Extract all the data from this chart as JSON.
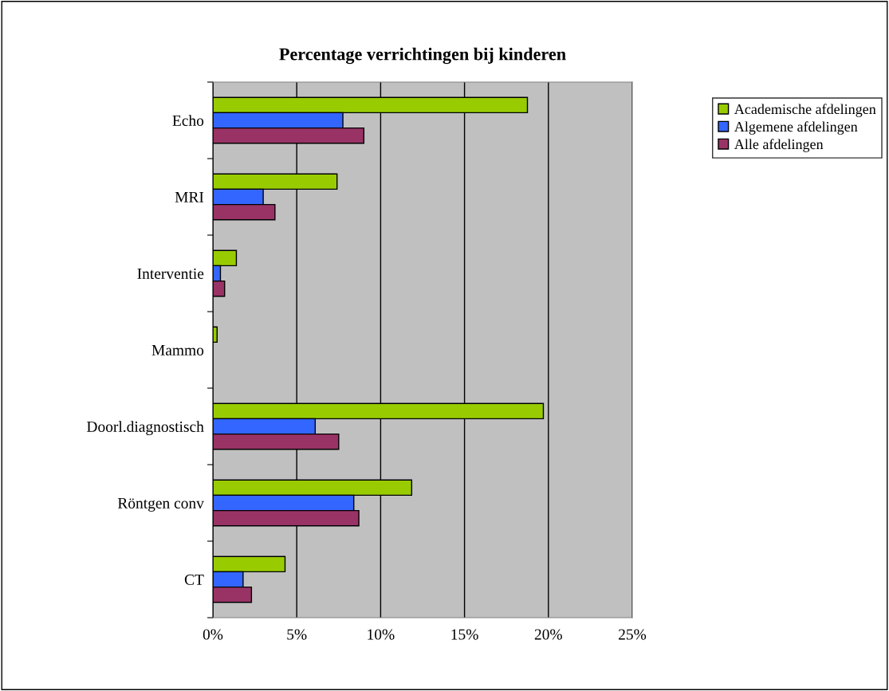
{
  "chart_data": {
    "type": "bar",
    "orientation": "horizontal",
    "title": "Percentage verrichtingen bij kinderen",
    "categories": [
      "Echo",
      "MRI",
      "Interventie",
      "Mammo",
      "Doorl.diagnostisch",
      "Röntgen conv",
      "CT"
    ],
    "series": [
      {
        "name": "Academische afdelingen",
        "color": "#99cc00",
        "values": [
          18.75,
          7.4,
          1.4,
          0.25,
          19.7,
          11.85,
          4.3
        ]
      },
      {
        "name": "Algemene afdelingen",
        "color": "#3366ff",
        "values": [
          7.75,
          3.0,
          0.45,
          0,
          6.1,
          8.4,
          1.8
        ]
      },
      {
        "name": "Alle afdelingen",
        "color": "#993366",
        "values": [
          9.0,
          3.7,
          0.7,
          0,
          7.5,
          8.7,
          2.3
        ]
      }
    ],
    "xlim": [
      0,
      25
    ],
    "xticks": [
      {
        "value": 0,
        "label": "0%"
      },
      {
        "value": 5,
        "label": "5%"
      },
      {
        "value": 10,
        "label": "10%"
      },
      {
        "value": 15,
        "label": "15%"
      },
      {
        "value": 20,
        "label": "20%"
      },
      {
        "value": 25,
        "label": "25%"
      }
    ],
    "grid": "x",
    "legend": "top right"
  }
}
